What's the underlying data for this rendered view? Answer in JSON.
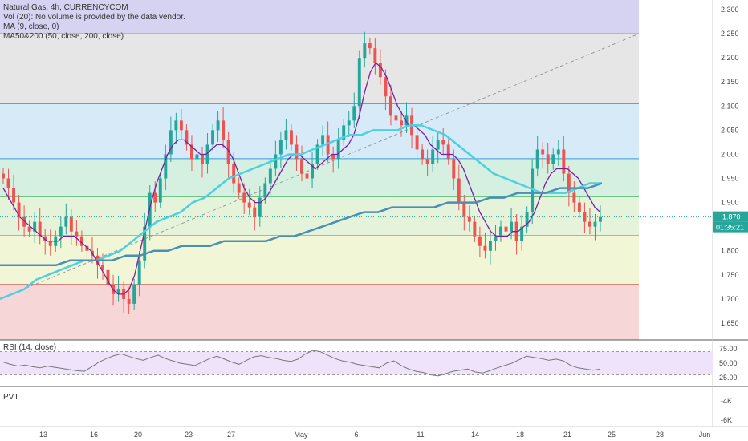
{
  "chart_data": {
    "type": "candlestick",
    "title": "Natural Gas, 4h, CURRENCYCOM",
    "legend_lines": [
      "Vol (20): No volume is provided by the data vendor.",
      "MA (9, close, 0)",
      "MA50&200 (50, close, 200, close)"
    ],
    "price_axis": {
      "ticks": [
        "2.300",
        "2.250",
        "2.200",
        "2.150",
        "2.100",
        "2.050",
        "2.000",
        "1.950",
        "1.900",
        "1.850",
        "1.800",
        "1.750",
        "1.700",
        "1.650"
      ],
      "range": [
        1.615,
        2.32
      ],
      "last_price": "1.870",
      "countdown": "01:35:21"
    },
    "x_axis_labels": [
      "13",
      "16",
      "20",
      "23",
      "27",
      "May",
      "6",
      "11",
      "14",
      "18",
      "21",
      "25",
      "28",
      "Jun"
    ],
    "fib_levels": [
      2.25,
      2.105,
      1.991,
      1.912,
      1.832,
      1.73
    ],
    "candles_close": [
      1.95,
      1.93,
      1.9,
      1.87,
      1.85,
      1.84,
      1.86,
      1.83,
      1.82,
      1.81,
      1.83,
      1.85,
      1.87,
      1.84,
      1.83,
      1.81,
      1.8,
      1.79,
      1.77,
      1.76,
      1.73,
      1.71,
      1.72,
      1.7,
      1.69,
      1.73,
      1.78,
      1.85,
      1.92,
      1.9,
      1.95,
      2.0,
      2.05,
      2.07,
      2.05,
      2.02,
      1.99,
      2.0,
      1.98,
      2.02,
      2.05,
      2.07,
      2.03,
      1.98,
      1.94,
      1.92,
      1.9,
      1.89,
      1.87,
      1.91,
      1.94,
      1.97,
      2.0,
      2.03,
      2.05,
      2.02,
      1.99,
      1.96,
      1.95,
      1.98,
      2.02,
      2.04,
      2.0,
      1.99,
      2.03,
      2.06,
      2.07,
      2.1,
      2.2,
      2.23,
      2.22,
      2.19,
      2.16,
      2.12,
      2.08,
      2.07,
      2.06,
      2.08,
      2.04,
      2.01,
      1.99,
      1.98,
      2.01,
      2.03,
      2.02,
      1.99,
      1.95,
      1.9,
      1.87,
      1.86,
      1.83,
      1.81,
      1.8,
      1.82,
      1.83,
      1.85,
      1.84,
      1.86,
      1.82,
      1.85,
      1.88,
      1.97,
      2.01,
      2.0,
      1.98,
      2.0,
      2.01,
      1.96,
      1.92,
      1.9,
      1.88,
      1.86,
      1.85,
      1.86,
      1.87
    ],
    "ma9": [
      1.93,
      1.91,
      1.89,
      1.87,
      1.86,
      1.85,
      1.84,
      1.83,
      1.82,
      1.82,
      1.82,
      1.83,
      1.83,
      1.83,
      1.82,
      1.81,
      1.8,
      1.78,
      1.76,
      1.74,
      1.72,
      1.71,
      1.71,
      1.72,
      1.75,
      1.8,
      1.85,
      1.9,
      1.94,
      1.97,
      2.0,
      2.02,
      2.03,
      2.03,
      2.02,
      2.01,
      2.0,
      2.0,
      2.01,
      2.02,
      2.02,
      2.01,
      1.99,
      1.96,
      1.93,
      1.91,
      1.9,
      1.9,
      1.91,
      1.93,
      1.95,
      1.97,
      1.99,
      2.0,
      2.0,
      1.99,
      1.98,
      1.97,
      1.98,
      1.99,
      2.0,
      2.0,
      2.01,
      2.02,
      2.04,
      2.08,
      2.13,
      2.17,
      2.19,
      2.18,
      2.16,
      2.13,
      2.1,
      2.08,
      2.06,
      2.06,
      2.05,
      2.04,
      2.02,
      2.01,
      2.0,
      2.0,
      2.0,
      1.99,
      1.97,
      1.94,
      1.91,
      1.88,
      1.86,
      1.84,
      1.83,
      1.83,
      1.83,
      1.84,
      1.84,
      1.85,
      1.86,
      1.88,
      1.91,
      1.94,
      1.96,
      1.97,
      1.97,
      1.97,
      1.96,
      1.95,
      1.93,
      1.91,
      1.89,
      1.88
    ],
    "ma50": [
      1.7,
      1.71,
      1.72,
      1.74,
      1.75,
      1.76,
      1.77,
      1.78,
      1.78,
      1.79,
      1.8,
      1.82,
      1.84,
      1.86,
      1.87,
      1.88,
      1.9,
      1.91,
      1.93,
      1.95,
      1.96,
      1.97,
      1.98,
      1.99,
      2.0,
      2.0,
      2.01,
      2.02,
      2.03,
      2.04,
      2.04,
      2.05,
      2.05,
      2.05,
      2.06,
      2.06,
      2.05,
      2.04,
      2.02,
      2.0,
      1.98,
      1.96,
      1.95,
      1.94,
      1.93,
      1.92,
      1.92,
      1.92,
      1.93,
      1.94,
      1.94
    ],
    "ma200": [
      1.77,
      1.77,
      1.77,
      1.77,
      1.77,
      1.78,
      1.78,
      1.78,
      1.78,
      1.79,
      1.79,
      1.8,
      1.8,
      1.81,
      1.81,
      1.81,
      1.82,
      1.82,
      1.82,
      1.82,
      1.83,
      1.83,
      1.84,
      1.85,
      1.86,
      1.87,
      1.88,
      1.88,
      1.89,
      1.89,
      1.89,
      1.89,
      1.9,
      1.9,
      1.9,
      1.91,
      1.91,
      1.92,
      1.92,
      1.92,
      1.93,
      1.93,
      1.93,
      1.94
    ],
    "rsi": {
      "title": "RSI (14, close)",
      "ticks": [
        "75.00",
        "50.00",
        "25.00"
      ],
      "values": [
        52,
        48,
        45,
        47,
        44,
        42,
        45,
        43,
        41,
        39,
        37,
        36,
        44,
        52,
        58,
        63,
        66,
        62,
        58,
        55,
        60,
        64,
        58,
        54,
        50,
        48,
        46,
        52,
        58,
        62,
        57,
        52,
        48,
        55,
        61,
        63,
        60,
        58,
        55,
        53,
        57,
        66,
        72,
        70,
        64,
        58,
        54,
        52,
        48,
        46,
        44,
        42,
        50,
        54,
        46,
        40,
        36,
        34,
        30,
        28,
        32,
        36,
        38,
        40,
        35,
        33,
        37,
        42,
        46,
        50,
        56,
        62,
        60,
        58,
        55,
        57,
        54,
        46,
        42,
        40,
        38,
        40
      ]
    },
    "pvt": {
      "title": "PVT",
      "ticks": [
        "-4K",
        "-6K"
      ]
    }
  },
  "colors": {
    "bull": "#26a69a",
    "bear": "#ef5350",
    "ma9": "#7b1fa2",
    "ma50": "#4dd0e1",
    "ma200": "#4a8fb5",
    "rsi": "#777777"
  }
}
